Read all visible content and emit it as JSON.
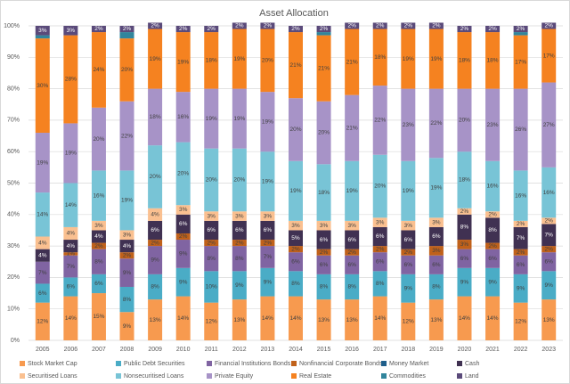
{
  "chart_data": {
    "type": "stacked-bar",
    "title": "Asset Allocation",
    "categories": [
      "2005",
      "2006",
      "2007",
      "2008",
      "2009",
      "2010",
      "2011",
      "2012",
      "2013",
      "2014",
      "2015",
      "2016",
      "2017",
      "2018",
      "2019",
      "2020",
      "2021",
      "2022",
      "2023"
    ],
    "ylim": [
      0,
      100
    ],
    "yticks": [
      {
        "value": 0,
        "label": "0%"
      },
      {
        "value": 10,
        "label": "10%"
      },
      {
        "value": 20,
        "label": "20%"
      },
      {
        "value": 30,
        "label": "30%"
      },
      {
        "value": 40,
        "label": "40%"
      },
      {
        "value": 50,
        "label": "50%"
      },
      {
        "value": 60,
        "label": "60%"
      },
      {
        "value": 70,
        "label": "70%"
      },
      {
        "value": 80,
        "label": "80%"
      },
      {
        "value": 90,
        "label": "90%"
      },
      {
        "value": 100,
        "label": "100%"
      }
    ],
    "grid": true,
    "series": [
      {
        "name": "Stock Market Cap",
        "color": "#f79a4f",
        "values": [
          12,
          14,
          15,
          9,
          13,
          14,
          12,
          13,
          14,
          14,
          13,
          13,
          14,
          12,
          13,
          14,
          14,
          12,
          13
        ],
        "value_labels": [
          "12%",
          "14%",
          "15%",
          "9%",
          "13%",
          "14%",
          "12%",
          "13%",
          "14%",
          "14%",
          "13%",
          "13%",
          "14%",
          "12%",
          "13%",
          "14%",
          "14%",
          "12%",
          "13%"
        ]
      },
      {
        "name": "Public Debt Securities",
        "color": "#4aacc6",
        "values": [
          6,
          6,
          6,
          8,
          8,
          9,
          10,
          9,
          9,
          8,
          8,
          8,
          8,
          9,
          8,
          9,
          9,
          9,
          9
        ],
        "value_labels": [
          "6%",
          "6%",
          "6%",
          "8%",
          "8%",
          "9%",
          "10%",
          "9%",
          "9%",
          "8%",
          "8%",
          "8%",
          "8%",
          "9%",
          "8%",
          "9%",
          "9%",
          "9%",
          "9%"
        ]
      },
      {
        "name": "Financial Institutions Bonds",
        "color": "#8064a2",
        "values": [
          7,
          7,
          8,
          9,
          9,
          9,
          8,
          8,
          7,
          6,
          6,
          6,
          6,
          6,
          6,
          6,
          6,
          6,
          6
        ],
        "value_labels": [
          "7%",
          "7%",
          "8%",
          "9%",
          "9%",
          "9%",
          "8%",
          "8%",
          "7%",
          "6%",
          "6%",
          "6%",
          "6%",
          "6%",
          "6%",
          "6%",
          "6%",
          "6%",
          "6%"
        ]
      },
      {
        "name": "Nonfinancial Corporate Bonds",
        "color": "#c0611a",
        "values": [
          0,
          1,
          2,
          2,
          2,
          2,
          2,
          2,
          2,
          2,
          2,
          2,
          2,
          2,
          3,
          3,
          2,
          2,
          2
        ],
        "value_labels": [
          null,
          "1%",
          "2%",
          "2%",
          "2%",
          "2%",
          "2%",
          "2%",
          "2%",
          "2%",
          "2%",
          "2%",
          "2%",
          "2%",
          "3%",
          "3%",
          "2%",
          "2%",
          "2%"
        ]
      },
      {
        "name": "Money Market",
        "color": "#1f5f8b",
        "values": [
          0,
          0,
          0,
          0,
          0,
          0,
          0,
          0,
          0,
          0,
          0,
          0,
          0,
          0,
          0,
          0,
          0,
          0,
          0
        ],
        "value_labels": [
          null,
          null,
          null,
          null,
          null,
          null,
          null,
          null,
          null,
          null,
          null,
          null,
          null,
          null,
          null,
          null,
          null,
          null,
          null
        ]
      },
      {
        "name": "Cash",
        "color": "#403152",
        "values": [
          4,
          4,
          4,
          4,
          6,
          6,
          6,
          6,
          6,
          5,
          6,
          6,
          6,
          6,
          6,
          8,
          8,
          7,
          7
        ],
        "value_labels": [
          "4%",
          "4%",
          "4%",
          "4%",
          "6%",
          "6%",
          "6%",
          "6%",
          "6%",
          "5%",
          "6%",
          "6%",
          "6%",
          "6%",
          "6%",
          "8%",
          "8%",
          "7%",
          "7%"
        ]
      },
      {
        "name": "Securitised Loans",
        "color": "#fac090",
        "values": [
          4,
          4,
          3,
          3,
          4,
          3,
          3,
          3,
          3,
          3,
          3,
          3,
          3,
          3,
          3,
          2,
          2,
          2,
          2
        ],
        "value_labels": [
          "4%",
          "4%",
          "3%",
          "3%",
          "4%",
          "3%",
          "3%",
          "3%",
          "3%",
          "3%",
          "3%",
          "3%",
          "3%",
          "3%",
          "3%",
          "2%",
          "2%",
          "2%",
          "2%"
        ]
      },
      {
        "name": "Nonsecuritised Loans",
        "color": "#78c4d6",
        "values": [
          14,
          14,
          16,
          19,
          20,
          20,
          20,
          20,
          19,
          19,
          18,
          19,
          20,
          19,
          19,
          18,
          16,
          16,
          16
        ],
        "value_labels": [
          "14%",
          "14%",
          "16%",
          "19%",
          "20%",
          "20%",
          "20%",
          "20%",
          "19%",
          "19%",
          "18%",
          "19%",
          "20%",
          "19%",
          "19%",
          "18%",
          "16%",
          "16%",
          "16%"
        ]
      },
      {
        "name": "Private Equity",
        "color": "#a793c7",
        "values": [
          19,
          19,
          20,
          22,
          18,
          16,
          19,
          19,
          19,
          20,
          20,
          21,
          22,
          23,
          22,
          20,
          23,
          26,
          27
        ],
        "value_labels": [
          "19%",
          "19%",
          "20%",
          "22%",
          "18%",
          "16%",
          "19%",
          "19%",
          "19%",
          "20%",
          "20%",
          "21%",
          "22%",
          "23%",
          "22%",
          "20%",
          "23%",
          "26%",
          "27%"
        ]
      },
      {
        "name": "Real Estate",
        "color": "#f58220",
        "values": [
          30,
          28,
          24,
          20,
          19,
          19,
          18,
          19,
          20,
          21,
          21,
          21,
          18,
          19,
          19,
          18,
          18,
          17,
          17
        ],
        "value_labels": [
          "30%",
          "28%",
          "24%",
          "20%",
          "19%",
          "19%",
          "18%",
          "19%",
          "20%",
          "21%",
          "21%",
          "21%",
          "18%",
          "19%",
          "19%",
          "18%",
          "18%",
          "17%",
          "17%"
        ]
      },
      {
        "name": "Commodities",
        "color": "#31859c",
        "values": [
          1,
          0,
          0,
          2,
          0,
          0,
          0,
          0,
          0,
          0,
          1,
          0,
          0,
          0,
          0,
          0,
          0,
          1,
          0
        ],
        "value_labels": [
          null,
          null,
          null,
          null,
          null,
          null,
          null,
          null,
          null,
          null,
          null,
          null,
          null,
          null,
          null,
          null,
          null,
          null,
          null
        ]
      },
      {
        "name": "Land",
        "color": "#5a4a7a",
        "values": [
          3,
          3,
          2,
          2,
          2,
          2,
          2,
          2,
          2,
          2,
          2,
          2,
          2,
          2,
          2,
          2,
          2,
          2,
          2
        ],
        "value_labels": [
          "3%",
          "3%",
          "2%",
          "2%",
          "2%",
          "2%",
          "2%",
          "2%",
          "2%",
          "2%",
          "2%",
          "2%",
          "2%",
          "2%",
          "2%",
          "2%",
          "2%",
          "2%",
          "2%"
        ]
      }
    ]
  }
}
